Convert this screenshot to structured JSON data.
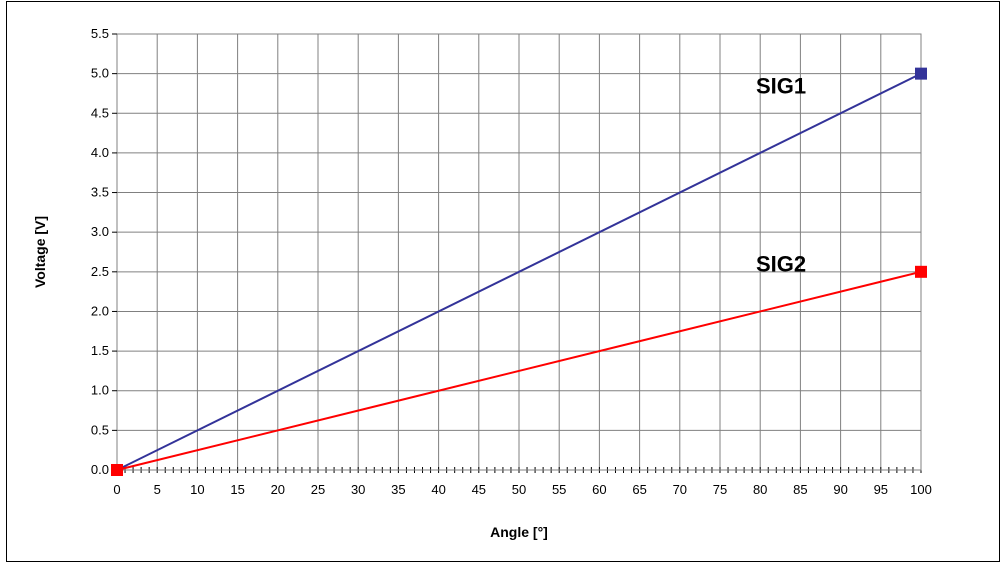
{
  "chart_data": {
    "type": "line",
    "xlabel": "Angle [°]",
    "ylabel": "Voltage [V]",
    "xlim": [
      0,
      100
    ],
    "ylim": [
      0,
      5.5
    ],
    "x_ticks": [
      "0",
      "5",
      "10",
      "15",
      "20",
      "25",
      "30",
      "35",
      "40",
      "45",
      "50",
      "55",
      "60",
      "65",
      "70",
      "75",
      "80",
      "85",
      "90",
      "95",
      "100"
    ],
    "y_ticks": [
      "0.0",
      "0.5",
      "1.0",
      "1.5",
      "2.0",
      "2.5",
      "3.0",
      "3.5",
      "4.0",
      "4.5",
      "5.0",
      "5.5"
    ],
    "grid": true,
    "series": [
      {
        "name": "SIG1",
        "color": "#333399",
        "x": [
          0,
          100
        ],
        "y": [
          0,
          5.0
        ]
      },
      {
        "name": "SIG2",
        "color": "#ff0000",
        "x": [
          0,
          100
        ],
        "y": [
          0,
          2.5
        ]
      }
    ]
  }
}
